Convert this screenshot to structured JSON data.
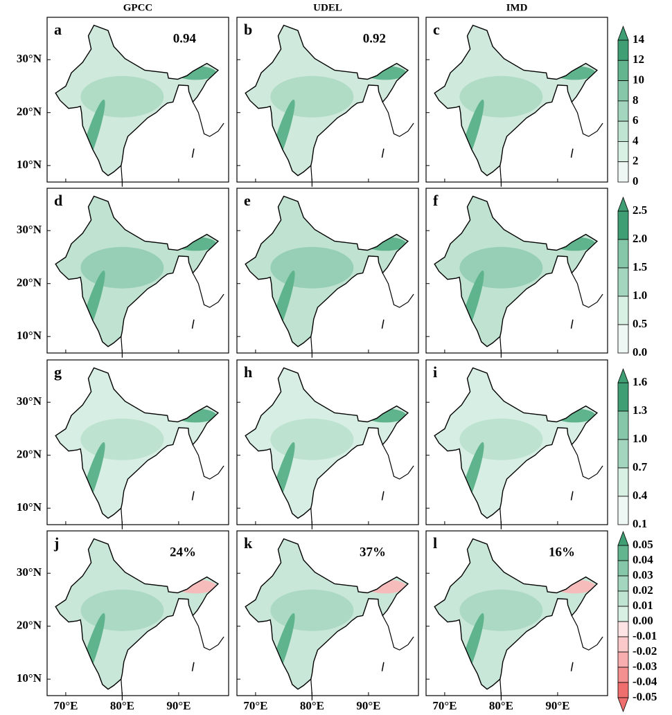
{
  "columns": [
    "GPCC",
    "UDEL",
    "IMD"
  ],
  "panels": [
    {
      "letter": "a",
      "annotation": "0.94"
    },
    {
      "letter": "b",
      "annotation": "0.92"
    },
    {
      "letter": "c"
    },
    {
      "letter": "d"
    },
    {
      "letter": "e"
    },
    {
      "letter": "f"
    },
    {
      "letter": "g"
    },
    {
      "letter": "h"
    },
    {
      "letter": "i"
    },
    {
      "letter": "j",
      "annotation": "24%"
    },
    {
      "letter": "k",
      "annotation": "37%"
    },
    {
      "letter": "l",
      "annotation": "16%"
    }
  ],
  "y_axis_labels": [
    "30°N",
    "20°N",
    "10°N"
  ],
  "x_axis_labels": [
    "70°E",
    "80°E",
    "90°E"
  ],
  "colorbars": [
    [
      "14",
      "12",
      "10",
      "8",
      "6",
      "4",
      "2",
      "0"
    ],
    [
      "2.5",
      "2.0",
      "1.5",
      "1.0",
      "0.5",
      "0.0"
    ],
    [
      "1.6",
      "1.3",
      "1.0",
      "0.7",
      "0.4",
      "0.1"
    ],
    [
      "0.05",
      "0.04",
      "0.03",
      "0.02",
      "0.01",
      "0.00",
      "-0.01",
      "-0.02",
      "-0.03",
      "-0.04",
      "-0.05"
    ]
  ]
}
